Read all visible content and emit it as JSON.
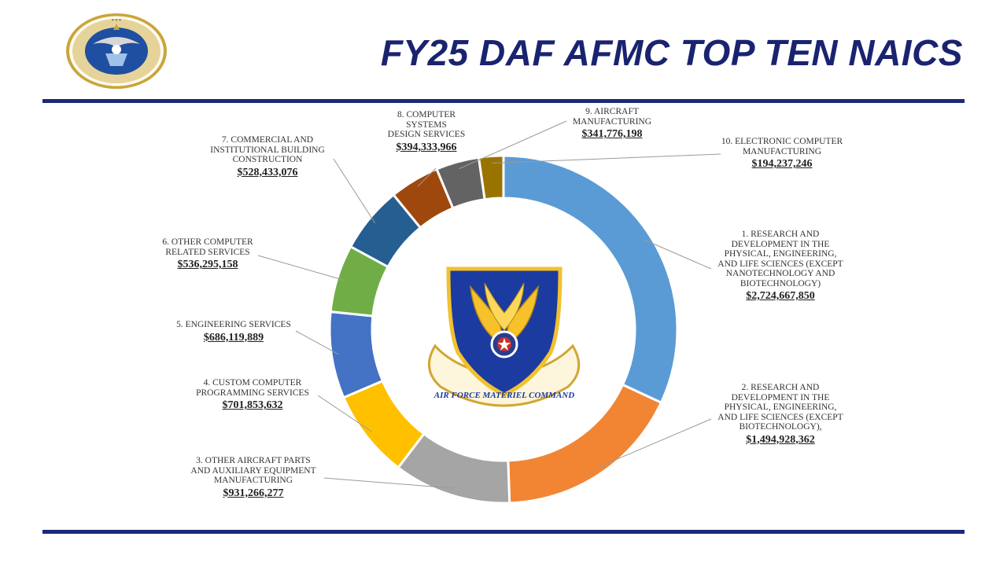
{
  "slide": {
    "title": "FY25 DAF AFMC TOP TEN NAICS",
    "seal_text": "DEPARTMENT OF THE AIR FORCE",
    "seal_bottom_text": "UNITED STATES OF AMERICA",
    "seal_year": "MCMXLVII",
    "emblem_text": "AIR FORCE MATERIEL COMMAND"
  },
  "colors": {
    "title": "#1a2370",
    "rule": "#1a2a78"
  },
  "chart_data": {
    "type": "pie",
    "donut": true,
    "title": "",
    "slices": [
      {
        "rank": "1",
        "label": "1. RESEARCH AND\nDEVELOPMENT IN THE\nPHYSICAL, ENGINEERING,\nAND LIFE SCIENCES (EXCEPT\nNANOTECHNOLOGY AND\nBIOTECHNOLOGY)",
        "value": 2724667850,
        "display": "$2,724,667,850",
        "color": "#5b9bd5"
      },
      {
        "rank": "2",
        "label": "2. RESEARCH AND\nDEVELOPMENT IN THE\nPHYSICAL, ENGINEERING,\nAND LIFE SCIENCES (EXCEPT\nBIOTECHNOLOGY),",
        "value": 1494928362,
        "display": "$1,494,928,362",
        "color": "#f28534"
      },
      {
        "rank": "3",
        "label": "3. OTHER AIRCRAFT PARTS\nAND AUXILIARY EQUIPMENT\nMANUFACTURING",
        "value": 931266277,
        "display": "$931,266,277",
        "color": "#a5a5a5"
      },
      {
        "rank": "4",
        "label": "4. CUSTOM COMPUTER\nPROGRAMMING SERVICES",
        "value": 701853632,
        "display": "$701,853,632",
        "color": "#ffc000"
      },
      {
        "rank": "5",
        "label": "5. ENGINEERING SERVICES",
        "value": 686119889,
        "display": "$686,119,889",
        "color": "#4472c4"
      },
      {
        "rank": "6",
        "label": "6. OTHER COMPUTER\nRELATED SERVICES",
        "value": 536295158,
        "display": "$536,295,158",
        "color": "#70ad47"
      },
      {
        "rank": "7",
        "label": "7. COMMERCIAL AND\nINSTITUTIONAL BUILDING\nCONSTRUCTION",
        "value": 528433076,
        "display": "$528,433,076",
        "color": "#255e91"
      },
      {
        "rank": "8",
        "label": "8. COMPUTER SYSTEMS\nDESIGN SERVICES",
        "value": 394333966,
        "display": "$394,333,966",
        "color": "#9e480e"
      },
      {
        "rank": "9",
        "label": "9. AIRCRAFT\nMANUFACTURING",
        "value": 341776198,
        "display": "$341,776,198",
        "color": "#636363"
      },
      {
        "rank": "10",
        "label": "10. ELECTRONIC COMPUTER\nMANUFACTURING",
        "value": 194237246,
        "display": "$194,237,246",
        "color": "#997300"
      }
    ]
  }
}
